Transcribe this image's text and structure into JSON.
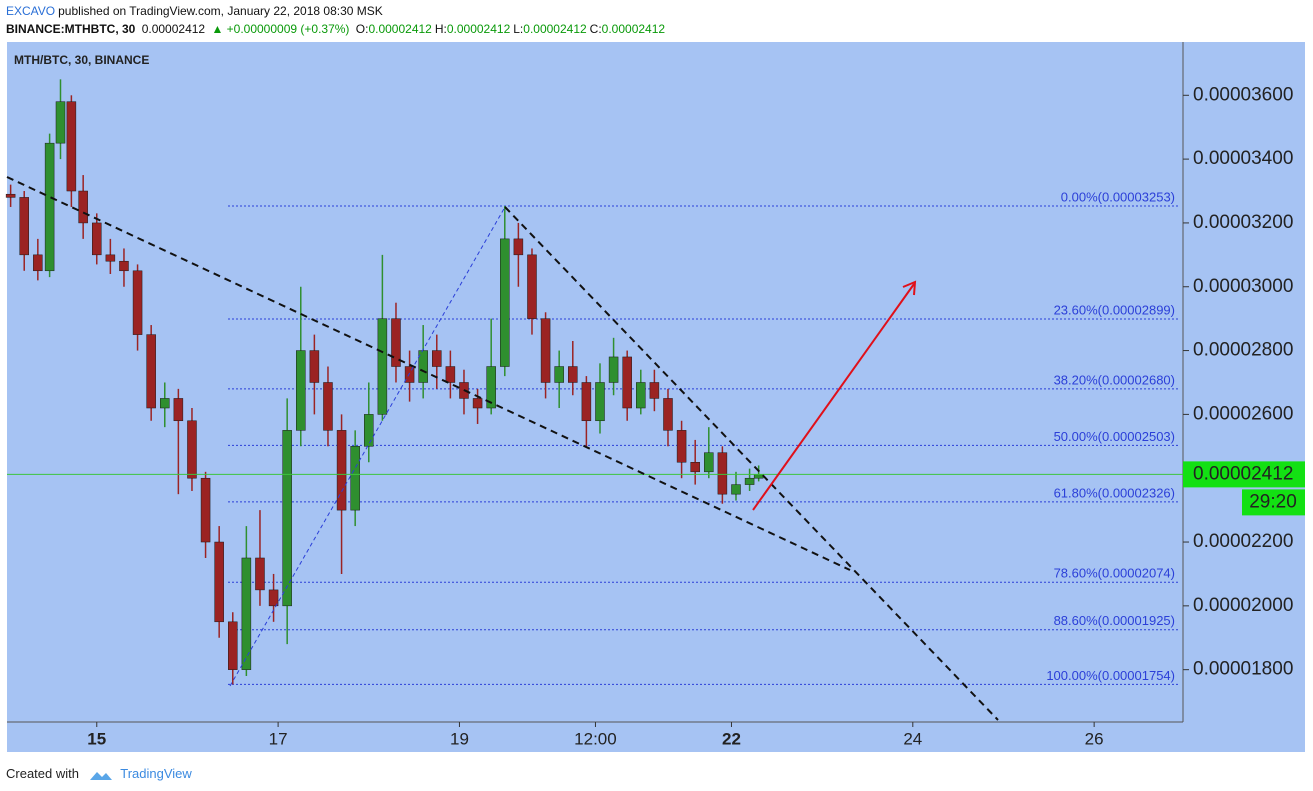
{
  "header": {
    "author": "EXCAVO",
    "published": "published on TradingView.com, January 22, 2018 08:30 MSK",
    "symbol": "BINANCE:MTHBTC, 30",
    "price": "0.00002412",
    "change": "▲ +0.00000009 (+0.37%)",
    "ohlc": [
      {
        "key": "O:",
        "val": "0.00002412"
      },
      {
        "key": "H:",
        "val": "0.00002412"
      },
      {
        "key": "L:",
        "val": "0.00002412"
      },
      {
        "key": "C:",
        "val": "0.00002412"
      }
    ]
  },
  "chart_data": {
    "type": "candlestick",
    "title": "MTH/BTC, 30, BINANCE",
    "up_color": "#2f8f2f",
    "down_color": "#9b2323",
    "x": [
      14.05,
      14.2,
      14.35,
      14.48,
      14.6,
      14.72,
      14.85,
      15.0,
      15.15,
      15.3,
      15.45,
      15.6,
      15.75,
      15.9,
      16.05,
      16.2,
      16.35,
      16.5,
      16.65,
      16.8,
      16.95,
      17.1,
      17.25,
      17.4,
      17.55,
      17.7,
      17.85,
      18.0,
      18.15,
      18.3,
      18.45,
      18.6,
      18.75,
      18.9,
      19.05,
      19.2,
      19.35,
      19.5,
      19.65,
      19.8,
      19.95,
      20.1,
      20.25,
      20.4,
      20.55,
      20.7,
      20.85,
      21.0,
      21.15,
      21.3,
      21.45,
      21.6,
      21.75,
      21.9,
      22.05,
      22.2,
      22.3
    ],
    "open": [
      3.29e-05,
      3.28e-05,
      3.1e-05,
      3.05e-05,
      3.45e-05,
      3.58e-05,
      3.3e-05,
      3.2e-05,
      3.1e-05,
      3.08e-05,
      3.05e-05,
      2.85e-05,
      2.62e-05,
      2.65e-05,
      2.58e-05,
      2.4e-05,
      2.2e-05,
      1.95e-05,
      1.8e-05,
      2.15e-05,
      2.05e-05,
      2e-05,
      2.55e-05,
      2.8e-05,
      2.7e-05,
      2.55e-05,
      2.3e-05,
      2.5e-05,
      2.6e-05,
      2.9e-05,
      2.75e-05,
      2.7e-05,
      2.8e-05,
      2.75e-05,
      2.7e-05,
      2.65e-05,
      2.62e-05,
      2.75e-05,
      3.15e-05,
      3.1e-05,
      2.9e-05,
      2.7e-05,
      2.75e-05,
      2.7e-05,
      2.58e-05,
      2.7e-05,
      2.78e-05,
      2.62e-05,
      2.7e-05,
      2.65e-05,
      2.55e-05,
      2.45e-05,
      2.42e-05,
      2.48e-05,
      2.35e-05,
      2.38e-05,
      2.4e-05
    ],
    "high": [
      3.32e-05,
      3.3e-05,
      3.15e-05,
      3.48e-05,
      3.65e-05,
      3.6e-05,
      3.35e-05,
      3.23e-05,
      3.15e-05,
      3.12e-05,
      3.07e-05,
      2.88e-05,
      2.7e-05,
      2.68e-05,
      2.62e-05,
      2.42e-05,
      2.25e-05,
      1.98e-05,
      2.25e-05,
      2.3e-05,
      2.1e-05,
      2.65e-05,
      3e-05,
      2.85e-05,
      2.75e-05,
      2.6e-05,
      2.55e-05,
      2.7e-05,
      3.1e-05,
      2.95e-05,
      2.8e-05,
      2.88e-05,
      2.85e-05,
      2.8e-05,
      2.74e-05,
      2.68e-05,
      2.9e-05,
      3.253e-05,
      3.2e-05,
      3.12e-05,
      2.92e-05,
      2.8e-05,
      2.83e-05,
      2.72e-05,
      2.76e-05,
      2.84e-05,
      2.8e-05,
      2.74e-05,
      2.74e-05,
      2.68e-05,
      2.58e-05,
      2.52e-05,
      2.56e-05,
      2.5e-05,
      2.42e-05,
      2.43e-05,
      2.44e-05
    ],
    "low": [
      3.25e-05,
      3.05e-05,
      3.02e-05,
      3.03e-05,
      3.4e-05,
      3.25e-05,
      3.15e-05,
      3.07e-05,
      3.04e-05,
      3e-05,
      2.8e-05,
      2.58e-05,
      2.56e-05,
      2.35e-05,
      2.36e-05,
      2.15e-05,
      1.9e-05,
      1.754e-05,
      1.78e-05,
      2e-05,
      1.95e-05,
      1.88e-05,
      2.5e-05,
      2.6e-05,
      2.5e-05,
      2.1e-05,
      2.25e-05,
      2.45e-05,
      2.58e-05,
      2.7e-05,
      2.64e-05,
      2.65e-05,
      2.68e-05,
      2.65e-05,
      2.6e-05,
      2.57e-05,
      2.6e-05,
      2.72e-05,
      3e-05,
      2.85e-05,
      2.65e-05,
      2.62e-05,
      2.66e-05,
      2.5e-05,
      2.54e-05,
      2.66e-05,
      2.58e-05,
      2.6e-05,
      2.61e-05,
      2.5e-05,
      2.4e-05,
      2.38e-05,
      2.4e-05,
      2.32e-05,
      2.33e-05,
      2.36e-05,
      2.39e-05
    ],
    "close": [
      3.28e-05,
      3.1e-05,
      3.05e-05,
      3.45e-05,
      3.58e-05,
      3.3e-05,
      3.2e-05,
      3.1e-05,
      3.08e-05,
      3.05e-05,
      2.85e-05,
      2.62e-05,
      2.65e-05,
      2.58e-05,
      2.4e-05,
      2.2e-05,
      1.95e-05,
      1.8e-05,
      2.15e-05,
      2.05e-05,
      2e-05,
      2.55e-05,
      2.8e-05,
      2.7e-05,
      2.55e-05,
      2.3e-05,
      2.5e-05,
      2.6e-05,
      2.9e-05,
      2.75e-05,
      2.7e-05,
      2.8e-05,
      2.75e-05,
      2.7e-05,
      2.65e-05,
      2.62e-05,
      2.75e-05,
      3.15e-05,
      3.1e-05,
      2.9e-05,
      2.7e-05,
      2.75e-05,
      2.7e-05,
      2.58e-05,
      2.7e-05,
      2.78e-05,
      2.62e-05,
      2.7e-05,
      2.65e-05,
      2.55e-05,
      2.45e-05,
      2.42e-05,
      2.48e-05,
      2.35e-05,
      2.38e-05,
      2.4e-05,
      2.412e-05
    ],
    "xlim": [
      14.01,
      26.98
    ],
    "xticks": [
      15,
      17,
      19,
      {
        "value": 20.5,
        "label": "12:00"
      },
      22,
      24,
      26
    ],
    "ylim": [
      1.636e-05,
      3.767e-05
    ],
    "yticks": [
      {
        "value": 1.8e-05,
        "label": "0.00001800"
      },
      {
        "value": 2e-05,
        "label": "0.00002000"
      },
      {
        "value": 2.2e-05,
        "label": "0.00002200"
      },
      {
        "value": 2.6e-05,
        "label": "0.00002600"
      },
      {
        "value": 2.8e-05,
        "label": "0.00002800"
      },
      {
        "value": 3e-05,
        "label": "0.00003000"
      },
      {
        "value": 3.2e-05,
        "label": "0.00003200"
      },
      {
        "value": 3.4e-05,
        "label": "0.00003400"
      },
      {
        "value": 3.6e-05,
        "label": "0.00003600"
      }
    ],
    "fib_levels": [
      {
        "value": 3.253e-05,
        "label": "0.00%(0.00003253)"
      },
      {
        "value": 2.899e-05,
        "label": "23.60%(0.00002899)"
      },
      {
        "value": 2.68e-05,
        "label": "38.20%(0.00002680)"
      },
      {
        "value": 2.503e-05,
        "label": "50.00%(0.00002503)"
      },
      {
        "value": 2.326e-05,
        "label": "61.80%(0.00002326)"
      },
      {
        "value": 2.074e-05,
        "label": "78.60%(0.00002074)"
      },
      {
        "value": 1.925e-05,
        "label": "88.60%(0.00001925)"
      },
      {
        "value": 1.754e-05,
        "label": "100.00%(0.00001754)"
      }
    ],
    "last_price": {
      "value": 2.412e-05,
      "label": "0.00002412"
    },
    "countdown": "29:20"
  },
  "footer": {
    "created": "Created with",
    "brand": "TradingView"
  }
}
